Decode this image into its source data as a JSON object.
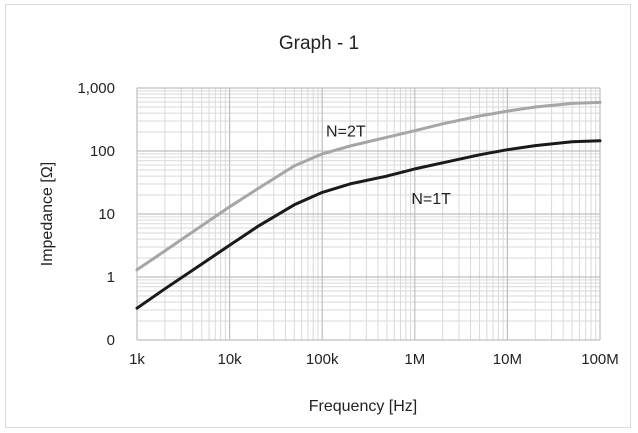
{
  "chart_data": {
    "type": "line",
    "title": "Graph - 1",
    "xlabel": "Frequency [Hz]",
    "ylabel": "Impedance [Ω]",
    "x_scale": "log",
    "y_scale": "log",
    "xlim": [
      1000,
      100000000
    ],
    "ylim": [
      0.1,
      1000
    ],
    "x_ticks": [
      1000,
      10000,
      100000,
      1000000,
      10000000,
      100000000
    ],
    "x_tick_labels": [
      "1k",
      "10k",
      "100k",
      "1M",
      "10M",
      "100M"
    ],
    "y_ticks": [
      0.1,
      1,
      10,
      100,
      1000
    ],
    "y_tick_labels": [
      "0",
      "1",
      "10",
      "100",
      "1,000"
    ],
    "grid": true,
    "series": [
      {
        "name": "N=2T",
        "color": "#a6a6a6",
        "x": [
          1000,
          2000,
          5000,
          10000,
          20000,
          50000,
          100000,
          200000,
          500000,
          1000000,
          2000000,
          5000000,
          10000000,
          20000000,
          50000000,
          100000000
        ],
        "y": [
          1.3,
          2.6,
          6.5,
          13,
          25,
          58,
          90,
          120,
          165,
          210,
          270,
          360,
          430,
          500,
          570,
          590
        ]
      },
      {
        "name": "N=1T",
        "color": "#1a1a1a",
        "x": [
          1000,
          2000,
          5000,
          10000,
          20000,
          50000,
          100000,
          200000,
          500000,
          1000000,
          2000000,
          5000000,
          10000000,
          20000000,
          50000000,
          100000000
        ],
        "y": [
          0.32,
          0.65,
          1.6,
          3.2,
          6.3,
          14,
          22,
          30,
          40,
          52,
          65,
          87,
          105,
          122,
          140,
          145
        ]
      }
    ],
    "annotations": [
      {
        "text": "N=2T",
        "x": 180000,
        "y": 210
      },
      {
        "text": "N=1T",
        "x": 1500000,
        "y": 18
      }
    ]
  }
}
